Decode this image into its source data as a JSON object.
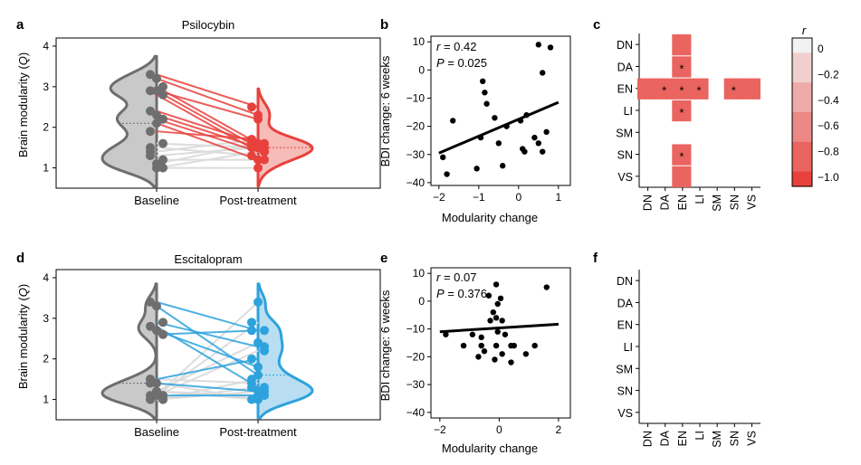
{
  "panel_letters": {
    "a": "a",
    "b": "b",
    "c": "c",
    "d": "d",
    "e": "e",
    "f": "f"
  },
  "colors": {
    "baseline": "#6e6e6e",
    "baseline_fill": "#c9c9c9",
    "psilocybin": "#e8413c",
    "psilocybin_fill": "#f5bcb8",
    "escitalopram": "#2ea2dc",
    "escitalopram_fill": "#b9def2",
    "nonsig_line": "#dcdcdc"
  },
  "chart_data": [
    {
      "id": "a",
      "type": "scatter",
      "title": "Psilocybin",
      "ylabel": "Brain modularity (Q)",
      "ylabel_text": "Brain modularity (",
      "ylabel_var": "Q",
      "ylabel_close": ")",
      "ylim": [
        0.5,
        4.2
      ],
      "yticks": [
        1,
        2,
        3,
        4
      ],
      "categories": [
        "Baseline",
        "Post-treatment"
      ],
      "pairs": [
        {
          "baseline": 3.3,
          "post": 2.5,
          "sig": true
        },
        {
          "baseline": 3.2,
          "post": 2.3,
          "sig": true
        },
        {
          "baseline": 3.0,
          "post": 1.6,
          "sig": true
        },
        {
          "baseline": 2.9,
          "post": 1.5,
          "sig": true
        },
        {
          "baseline": 2.9,
          "post": 2.2,
          "sig": true
        },
        {
          "baseline": 2.8,
          "post": 1.4,
          "sig": true
        },
        {
          "baseline": 2.4,
          "post": 1.6,
          "sig": true
        },
        {
          "baseline": 2.3,
          "post": 1.5,
          "sig": true
        },
        {
          "baseline": 2.2,
          "post": 1.4,
          "sig": true
        },
        {
          "baseline": 1.9,
          "post": 1.7,
          "sig": true
        },
        {
          "baseline": 2.1,
          "post": 1.2,
          "sig": true
        },
        {
          "baseline": 1.6,
          "post": 1.5,
          "sig": false
        },
        {
          "baseline": 1.4,
          "post": 1.7,
          "sig": false
        },
        {
          "baseline": 1.1,
          "post": 1.6,
          "sig": false
        },
        {
          "baseline": 1.0,
          "post": 1.4,
          "sig": false
        },
        {
          "baseline": 1.3,
          "post": 1.5,
          "sig": false
        },
        {
          "baseline": 1.0,
          "post": 1.0,
          "sig": false
        },
        {
          "baseline": 1.2,
          "post": 1.2,
          "sig": false
        },
        {
          "baseline": 1.5,
          "post": 1.3,
          "sig": false
        }
      ]
    },
    {
      "id": "b",
      "type": "scatter",
      "xlabel": "Modularity change",
      "ylabel": "BDI change: 6 weeks",
      "xlim": [
        -2.2,
        1.3
      ],
      "ylim": [
        -41,
        12
      ],
      "xticks": [
        -2,
        -1,
        0,
        1
      ],
      "yticks": [
        10,
        0,
        -10,
        -20,
        -30,
        -40
      ],
      "stat_r_label": "r",
      "stat_r_value": " = 0.42",
      "stat_p_label": "P",
      "stat_p_value": " = 0.025",
      "points": [
        [
          0.5,
          9
        ],
        [
          0.8,
          8
        ],
        [
          0.6,
          -1
        ],
        [
          -0.9,
          -4
        ],
        [
          -0.85,
          -8
        ],
        [
          -0.8,
          -12
        ],
        [
          -0.6,
          -17
        ],
        [
          -0.5,
          -26
        ],
        [
          0.2,
          -16
        ],
        [
          0.4,
          -24
        ],
        [
          0.5,
          -26
        ],
        [
          0.7,
          -22
        ],
        [
          0.05,
          -18
        ],
        [
          0.1,
          -28
        ],
        [
          0.15,
          -29
        ],
        [
          -0.3,
          -20
        ],
        [
          -0.4,
          -34
        ],
        [
          -1.65,
          -18
        ],
        [
          -1.05,
          -35
        ],
        [
          -1.9,
          -31
        ],
        [
          -1.8,
          -37
        ],
        [
          -0.95,
          -24
        ],
        [
          0.6,
          -29
        ]
      ],
      "fit": [
        [
          -2.0,
          -29.5
        ],
        [
          1.0,
          -11.5
        ]
      ]
    },
    {
      "id": "c",
      "type": "heatmap",
      "colorbar_label": "r",
      "rows": [
        "DN",
        "DA",
        "EN",
        "LI",
        "SM",
        "SN",
        "VS"
      ],
      "cols": [
        "DN",
        "DA",
        "EN",
        "LI",
        "SM",
        "SN",
        "VS"
      ],
      "cells": [
        {
          "row": "DN",
          "col": "EN",
          "value": -0.8,
          "star": false
        },
        {
          "row": "DA",
          "col": "EN",
          "value": -0.8,
          "star": true
        },
        {
          "row": "EN",
          "col": "DN",
          "value": -0.8,
          "star": false
        },
        {
          "row": "EN",
          "col": "DA",
          "value": -0.8,
          "star": true
        },
        {
          "row": "EN",
          "col": "EN",
          "value": -0.8,
          "star": true
        },
        {
          "row": "EN",
          "col": "LI",
          "value": -0.8,
          "star": true
        },
        {
          "row": "EN",
          "col": "SN",
          "value": -0.8,
          "star": true
        },
        {
          "row": "EN",
          "col": "VS",
          "value": -0.8,
          "star": false
        },
        {
          "row": "LI",
          "col": "EN",
          "value": -0.8,
          "star": true
        },
        {
          "row": "SN",
          "col": "EN",
          "value": -0.8,
          "star": true
        },
        {
          "row": "VS",
          "col": "EN",
          "value": -0.8,
          "star": false
        }
      ],
      "colorbar_ticks": [
        "0",
        "−0.2",
        "−0.4",
        "−0.6",
        "−0.8",
        "−1.0"
      ],
      "star_symbol": "*"
    },
    {
      "id": "d",
      "type": "scatter",
      "title": "Escitalopram",
      "ylabel": "Brain modularity (Q)",
      "ylabel_text": "Brain modularity (",
      "ylabel_var": "Q",
      "ylabel_close": ")",
      "ylim": [
        0.5,
        4.2
      ],
      "yticks": [
        1,
        2,
        3,
        4
      ],
      "categories": [
        "Baseline",
        "Post-treatment"
      ],
      "pairs": [
        {
          "baseline": 3.4,
          "post": 2.7,
          "sig": true
        },
        {
          "baseline": 3.3,
          "post": 1.6,
          "sig": true
        },
        {
          "baseline": 2.9,
          "post": 2.3,
          "sig": true
        },
        {
          "baseline": 2.8,
          "post": 1.3,
          "sig": true
        },
        {
          "baseline": 2.7,
          "post": 1.8,
          "sig": true
        },
        {
          "baseline": 2.6,
          "post": 2.7,
          "sig": true
        },
        {
          "baseline": 1.5,
          "post": 2.0,
          "sig": true
        },
        {
          "baseline": 1.4,
          "post": 1.2,
          "sig": true
        },
        {
          "baseline": 1.1,
          "post": 1.1,
          "sig": true
        },
        {
          "baseline": 1.5,
          "post": 1.4,
          "sig": false
        },
        {
          "baseline": 1.2,
          "post": 2.4,
          "sig": false
        },
        {
          "baseline": 1.1,
          "post": 2.2,
          "sig": false
        },
        {
          "baseline": 1.0,
          "post": 1.5,
          "sig": false
        },
        {
          "baseline": 1.2,
          "post": 1.0,
          "sig": false
        },
        {
          "baseline": 1.0,
          "post": 1.3,
          "sig": false
        },
        {
          "baseline": 1.1,
          "post": 2.9,
          "sig": false
        },
        {
          "baseline": 1.2,
          "post": 1.1,
          "sig": false
        },
        {
          "baseline": 1.0,
          "post": 1.2,
          "sig": false
        },
        {
          "baseline": 1.4,
          "post": 1.0,
          "sig": false
        },
        {
          "baseline": 1.1,
          "post": 3.4,
          "sig": false
        }
      ]
    },
    {
      "id": "e",
      "type": "scatter",
      "xlabel": "Modularity change",
      "ylabel": "BDI change: 6 weeks",
      "xlim": [
        -2.3,
        2.4
      ],
      "ylim": [
        -42,
        12
      ],
      "xticks": [
        -2,
        0,
        2
      ],
      "yticks": [
        10,
        0,
        -10,
        -20,
        -30,
        -40
      ],
      "stat_r_label": "r",
      "stat_r_value": " = 0.07",
      "stat_p_label": "P",
      "stat_p_value": " = 0.376",
      "points": [
        [
          -0.1,
          6
        ],
        [
          1.6,
          5
        ],
        [
          -0.35,
          2
        ],
        [
          0.05,
          1
        ],
        [
          -0.05,
          -1
        ],
        [
          -0.2,
          -4
        ],
        [
          -0.1,
          -6
        ],
        [
          0.1,
          -7
        ],
        [
          -0.3,
          -7
        ],
        [
          -0.05,
          -11
        ],
        [
          0.2,
          -12
        ],
        [
          -0.6,
          -13
        ],
        [
          -0.9,
          -12
        ],
        [
          -1.2,
          -16
        ],
        [
          -0.6,
          -16
        ],
        [
          -0.1,
          -16
        ],
        [
          0.4,
          -16
        ],
        [
          0.5,
          -16
        ],
        [
          1.2,
          -16
        ],
        [
          -0.5,
          -18
        ],
        [
          0.1,
          -19
        ],
        [
          0.9,
          -19
        ],
        [
          -0.7,
          -20
        ],
        [
          -0.15,
          -21
        ],
        [
          0.4,
          -22
        ],
        [
          -1.8,
          -12
        ]
      ],
      "fit": [
        [
          -2.0,
          -11.0
        ],
        [
          2.0,
          -8.3
        ]
      ]
    },
    {
      "id": "f",
      "type": "heatmap",
      "rows": [
        "DN",
        "DA",
        "EN",
        "LI",
        "SM",
        "SN",
        "VS"
      ],
      "cols": [
        "DN",
        "DA",
        "EN",
        "LI",
        "SM",
        "SN",
        "VS"
      ],
      "cells": []
    }
  ]
}
